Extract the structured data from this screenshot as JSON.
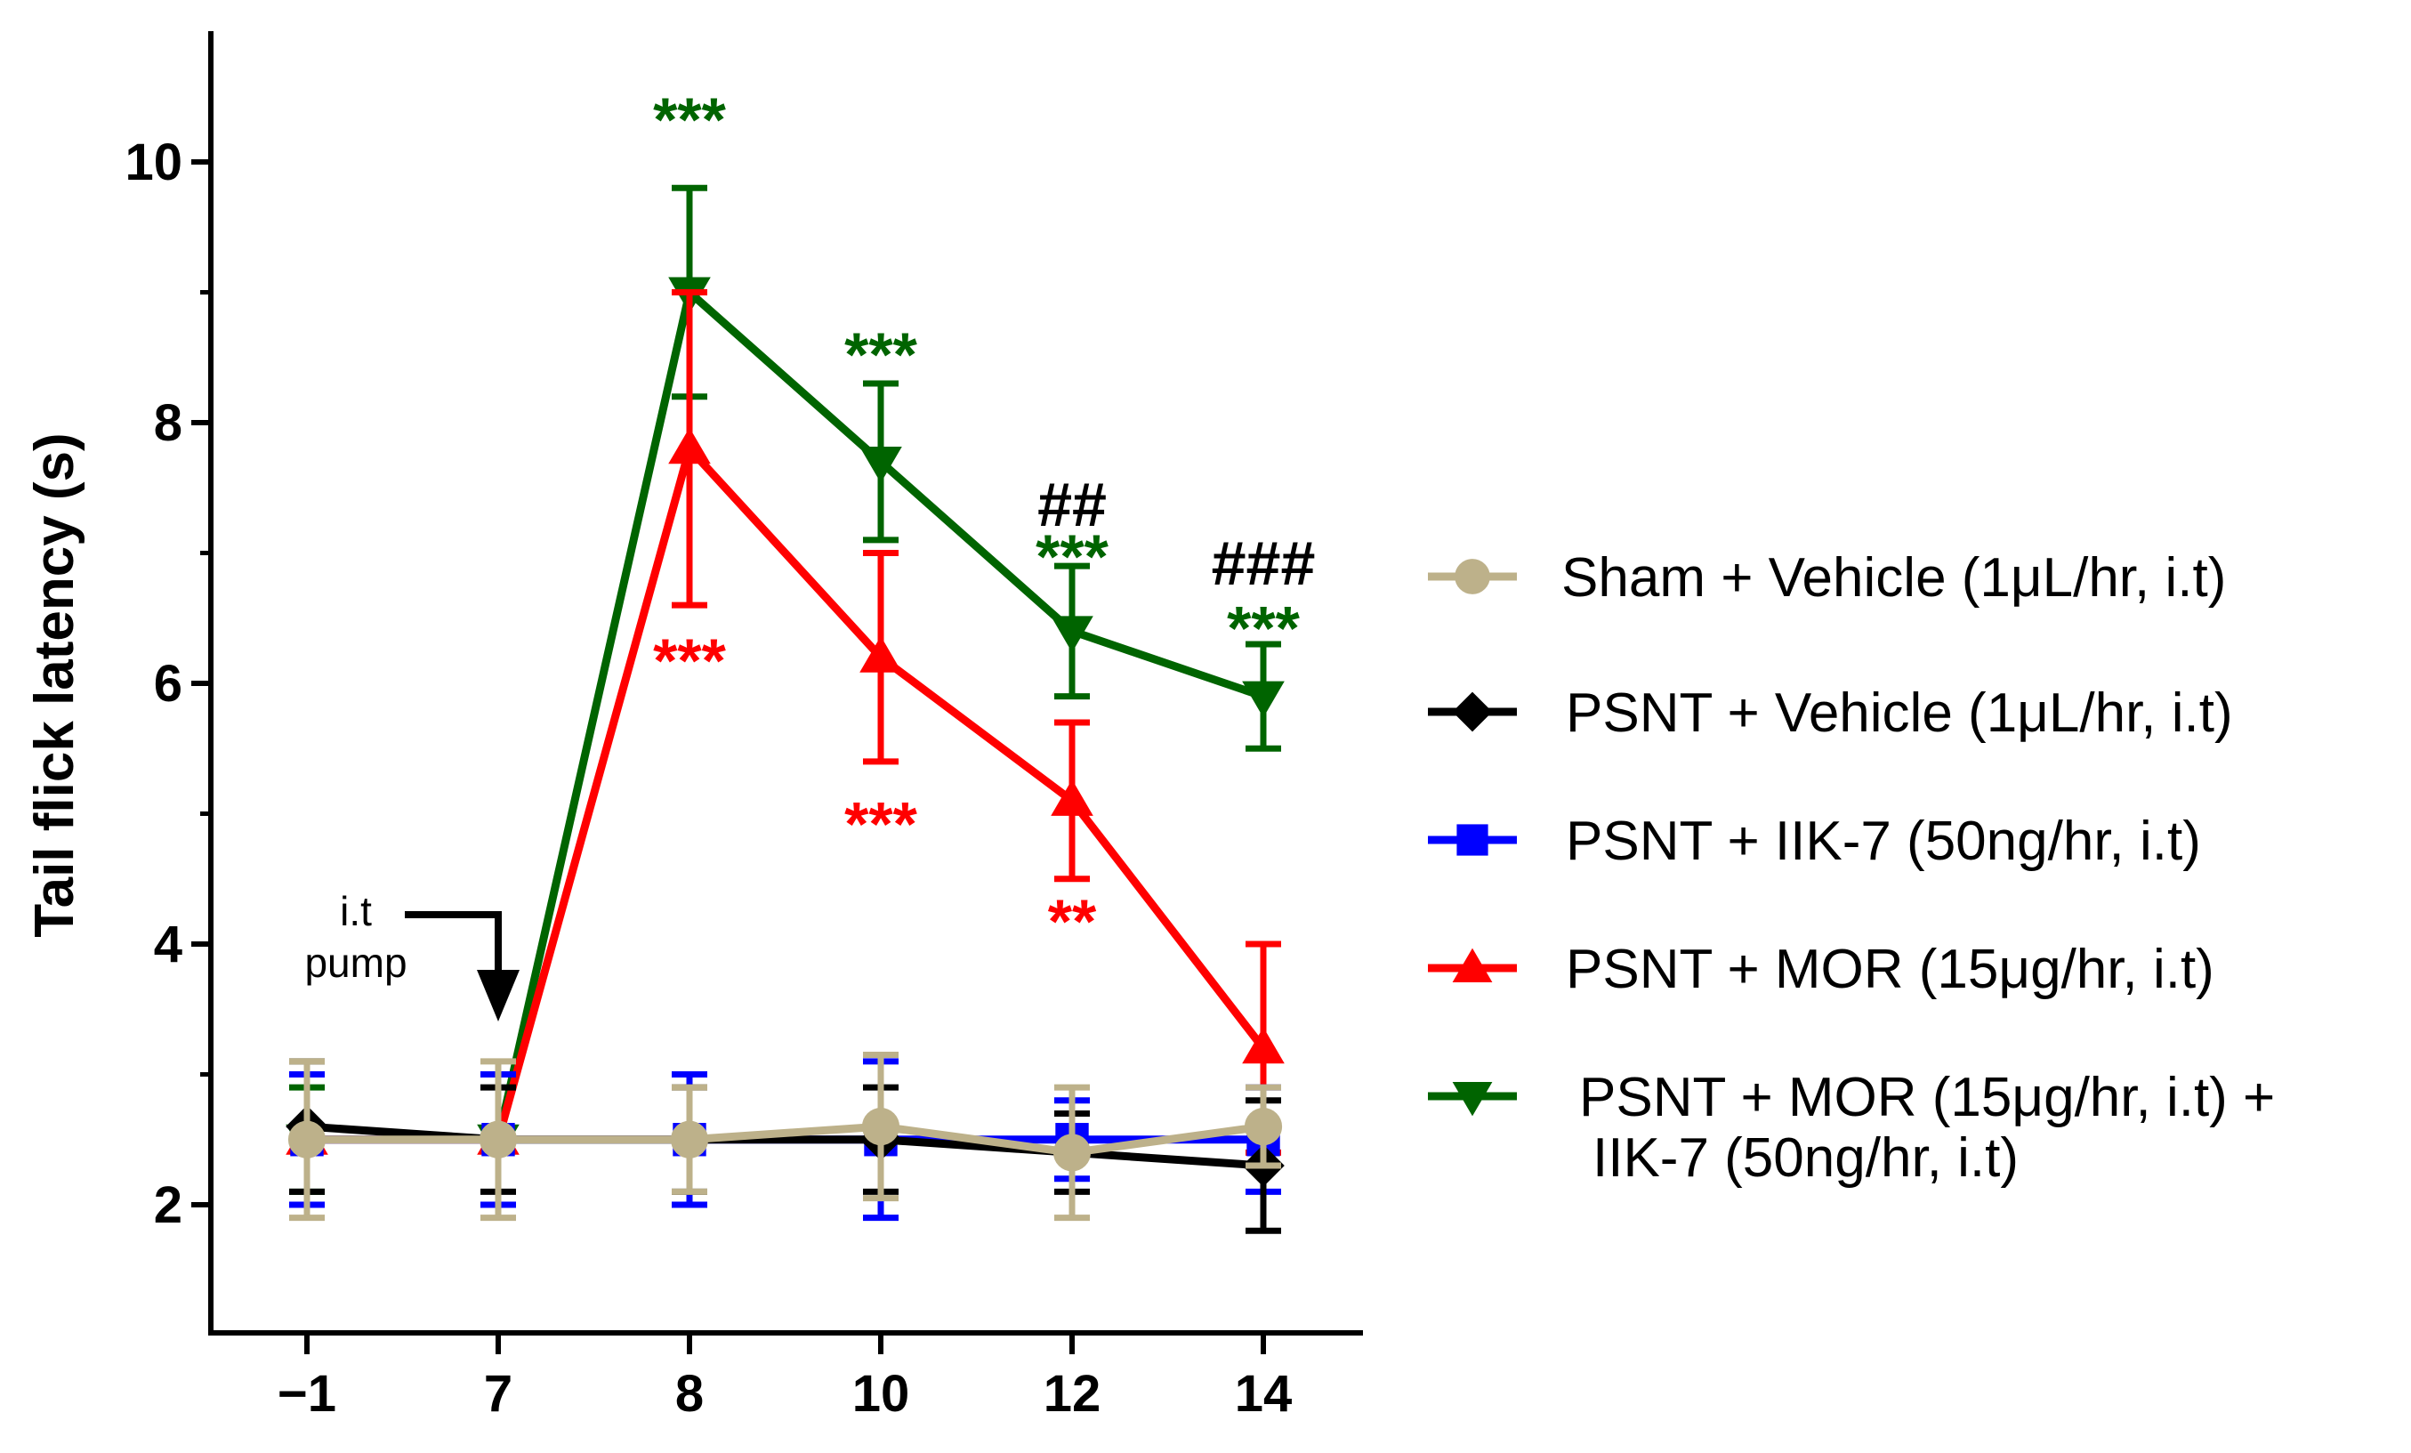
{
  "chart_data": {
    "type": "line",
    "title": "",
    "xlabel": "",
    "ylabel": "Tail flick latency (s)",
    "ylim": [
      1,
      11
    ],
    "y_ticks": [
      "2",
      "4",
      "6",
      "8",
      "10"
    ],
    "y_tick_values": [
      2,
      4,
      6,
      8,
      10
    ],
    "categories": [
      "−1",
      "7",
      "8",
      "10",
      "12",
      "14"
    ],
    "series": [
      {
        "name": "Sham + Vehicle (1μL/hr, i.t)",
        "color": "#BDB18A",
        "marker": "circle",
        "values": [
          2.5,
          2.5,
          2.5,
          2.6,
          2.4,
          2.6
        ],
        "errors": [
          0.6,
          0.6,
          0.4,
          0.55,
          0.5,
          0.3
        ]
      },
      {
        "name": "PSNT + Vehicle (1μL/hr, i.t)",
        "color": "#000000",
        "marker": "diamond",
        "values": [
          2.6,
          2.5,
          2.5,
          2.5,
          2.4,
          2.3
        ],
        "errors": [
          0.5,
          0.4,
          0.4,
          0.4,
          0.3,
          0.5
        ]
      },
      {
        "name": "PSNT + IIK-7 (50ng/hr, i.t)",
        "color": "#0000FF",
        "marker": "square",
        "values": [
          2.5,
          2.5,
          2.5,
          2.5,
          2.5,
          2.5
        ],
        "errors": [
          0.5,
          0.5,
          0.5,
          0.6,
          0.3,
          0.4
        ]
      },
      {
        "name": "PSNT + MOR (15μg/hr, i.t)",
        "color": "#FF0000",
        "marker": "triangle-up",
        "values": [
          2.5,
          2.5,
          7.8,
          6.2,
          5.1,
          3.2
        ],
        "errors": [
          0.5,
          0.5,
          1.2,
          0.8,
          0.6,
          0.8
        ]
      },
      {
        "name": "PSNT + MOR (15μg/hr, i.t) +",
        "name_line2": "IIK-7 (50ng/hr, i.t)",
        "color": "#006400",
        "marker": "triangle-down",
        "values": [
          2.5,
          2.5,
          9.0,
          7.7,
          6.4,
          5.9
        ],
        "errors": [
          0.4,
          0.5,
          0.8,
          0.6,
          0.5,
          0.4
        ]
      }
    ],
    "annotations": [
      {
        "text": "***",
        "color": "#006400",
        "x": "8",
        "y": 10.35
      },
      {
        "text": "***",
        "color": "#FF0000",
        "x": "8",
        "y": 6.2
      },
      {
        "text": "***",
        "color": "#006400",
        "x": "10",
        "y": 8.55
      },
      {
        "text": "***",
        "color": "#FF0000",
        "x": "10",
        "y": 4.95
      },
      {
        "text": "##",
        "color": "#000000",
        "x": "12",
        "y": 7.4
      },
      {
        "text": "***",
        "color": "#006400",
        "x": "12",
        "y": 7.0
      },
      {
        "text": "**",
        "color": "#FF0000",
        "x": "12",
        "y": 4.2
      },
      {
        "text": "###",
        "color": "#000000",
        "x": "14",
        "y": 6.95
      },
      {
        "text": "***",
        "color": "#006400",
        "x": "14",
        "y": 6.45
      }
    ],
    "arrow_annotation": {
      "line1": "i.t",
      "line2": "pump",
      "x": "7"
    },
    "legend_position": "right"
  }
}
